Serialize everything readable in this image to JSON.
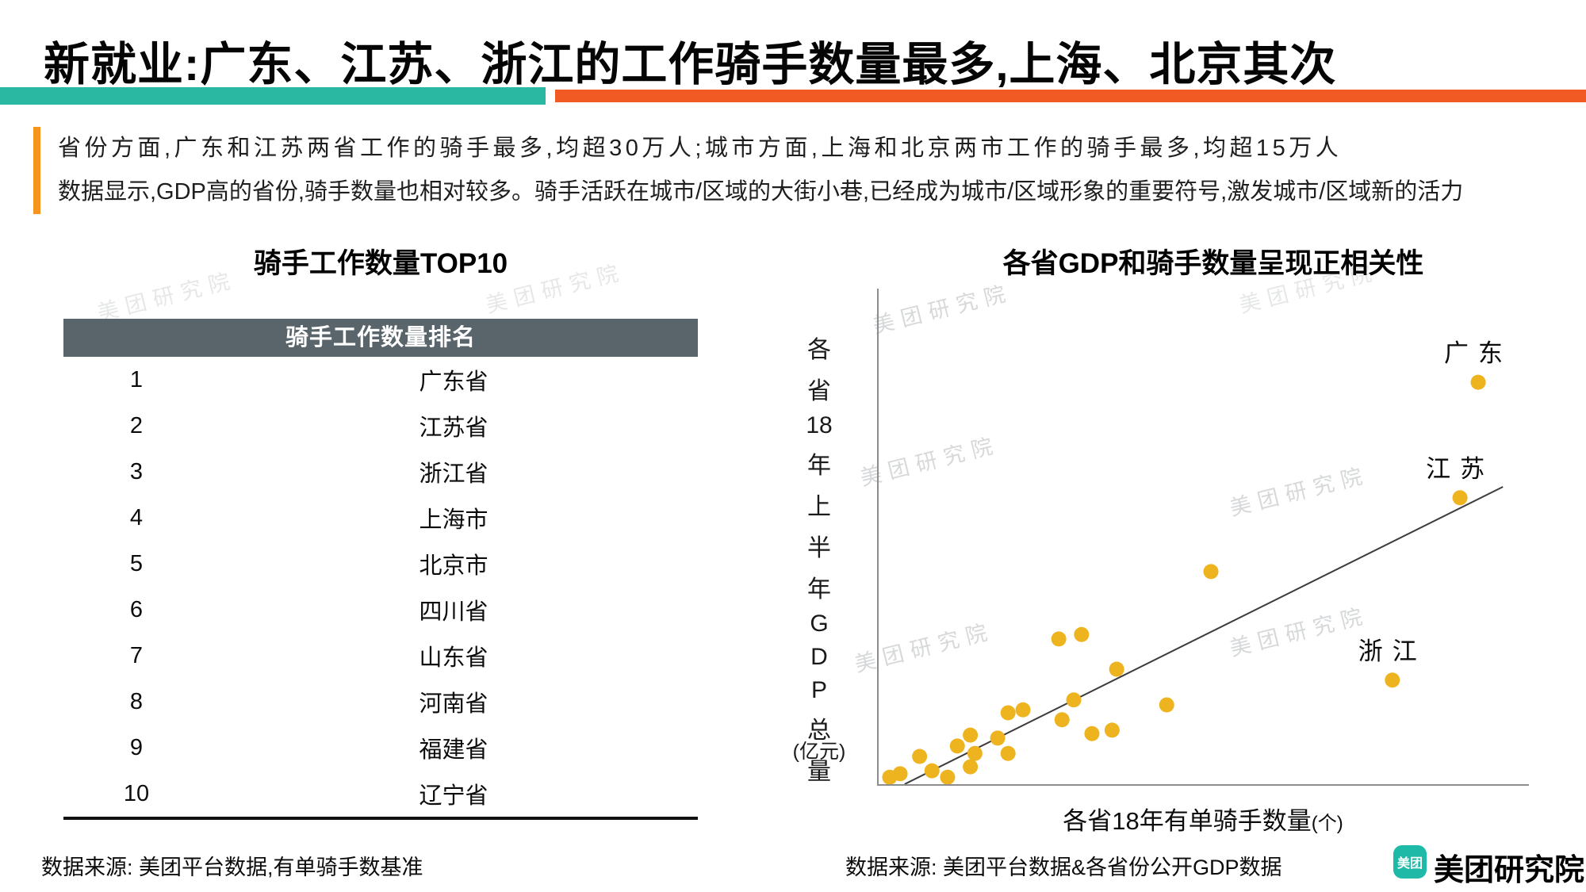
{
  "page": {
    "title": "新就业:广东、江苏、浙江的工作骑手数量最多,上海、北京其次",
    "accent_teal": "#2bb8a3",
    "accent_orange": "#f15a22"
  },
  "intro": {
    "line1": "省份方面,广东和江苏两省工作的骑手最多,均超30万人;城市方面,上海和北京两市工作的骑手最多,均超15万人",
    "line2": "数据显示,GDP高的省份,骑手数量也相对较多。骑手活跃在城市/区域的大街小巷,已经成为城市/区域形象的重要符号,激发城市/区域新的活力"
  },
  "table_section": {
    "title": "骑手工作数量TOP10",
    "header": "骑手工作数量排名",
    "header_bg": "#59656b",
    "source": "数据来源: 美团平台数据,有单骑手数基准"
  },
  "chart_section": {
    "title": "各省GDP和骑手数量呈现正相关性",
    "y_axis_chars": [
      "各",
      "省",
      "18",
      "年",
      "上",
      "半",
      "年",
      "G",
      "D",
      "P",
      "总",
      "量"
    ],
    "y_axis_unit": "(亿元)",
    "x_axis_label": "各省18年有单骑手数量",
    "x_axis_unit": "(个)",
    "source": "数据来源: 美团平台数据&各省份公开GDP数据"
  },
  "chart_data": [
    {
      "type": "scatter",
      "title": "各省GDP和骑手数量呈现正相关性",
      "xlabel": "各省18年有单骑手数量(个)",
      "ylabel": "各省18年上半年GDP总量(亿元)",
      "xlim": [
        0,
        100
      ],
      "ylim": [
        0,
        100
      ],
      "ticks": "none shown in source; point coordinates are relative positions 0-100",
      "legend": "none",
      "grid": false,
      "point_color": "#eeb41f",
      "trendline": {
        "x1": 4,
        "y1": 0,
        "x2": 96,
        "y2": 60
      },
      "points": [
        {
          "x": 92.2,
          "y": 81.1,
          "label": "广东"
        },
        {
          "x": 89.4,
          "y": 57.8,
          "label": "江苏"
        },
        {
          "x": 79.0,
          "y": 21.0,
          "label": "浙江"
        },
        {
          "x": 51.1,
          "y": 42.9
        },
        {
          "x": 44.3,
          "y": 16.0
        },
        {
          "x": 36.6,
          "y": 23.2
        },
        {
          "x": 35.9,
          "y": 10.9
        },
        {
          "x": 32.8,
          "y": 10.2
        },
        {
          "x": 31.2,
          "y": 30.2
        },
        {
          "x": 30.0,
          "y": 17.0
        },
        {
          "x": 28.2,
          "y": 13.0
        },
        {
          "x": 27.7,
          "y": 29.3
        },
        {
          "x": 22.2,
          "y": 15.0
        },
        {
          "x": 19.9,
          "y": 14.4
        },
        {
          "x": 19.9,
          "y": 6.2
        },
        {
          "x": 18.3,
          "y": 9.3
        },
        {
          "x": 14.8,
          "y": 6.2
        },
        {
          "x": 14.1,
          "y": 9.9
        },
        {
          "x": 14.1,
          "y": 3.5
        },
        {
          "x": 12.1,
          "y": 7.7
        },
        {
          "x": 10.6,
          "y": 1.4
        },
        {
          "x": 8.2,
          "y": 2.7
        },
        {
          "x": 6.3,
          "y": 5.6
        },
        {
          "x": 3.3,
          "y": 2.1
        },
        {
          "x": 1.7,
          "y": 1.4
        }
      ]
    },
    {
      "type": "table",
      "title": "骑手工作数量TOP10",
      "header": "骑手工作数量排名",
      "rows": [
        [
          "1",
          "广东省"
        ],
        [
          "2",
          "江苏省"
        ],
        [
          "3",
          "浙江省"
        ],
        [
          "4",
          "上海市"
        ],
        [
          "5",
          "北京市"
        ],
        [
          "6",
          "四川省"
        ],
        [
          "7",
          "山东省"
        ],
        [
          "8",
          "河南省"
        ],
        [
          "9",
          "福建省"
        ],
        [
          "10",
          "辽宁省"
        ]
      ]
    }
  ],
  "branding": {
    "logo_text": "美团",
    "name": "美团研究院"
  },
  "watermark": {
    "text": "美团研究院"
  }
}
